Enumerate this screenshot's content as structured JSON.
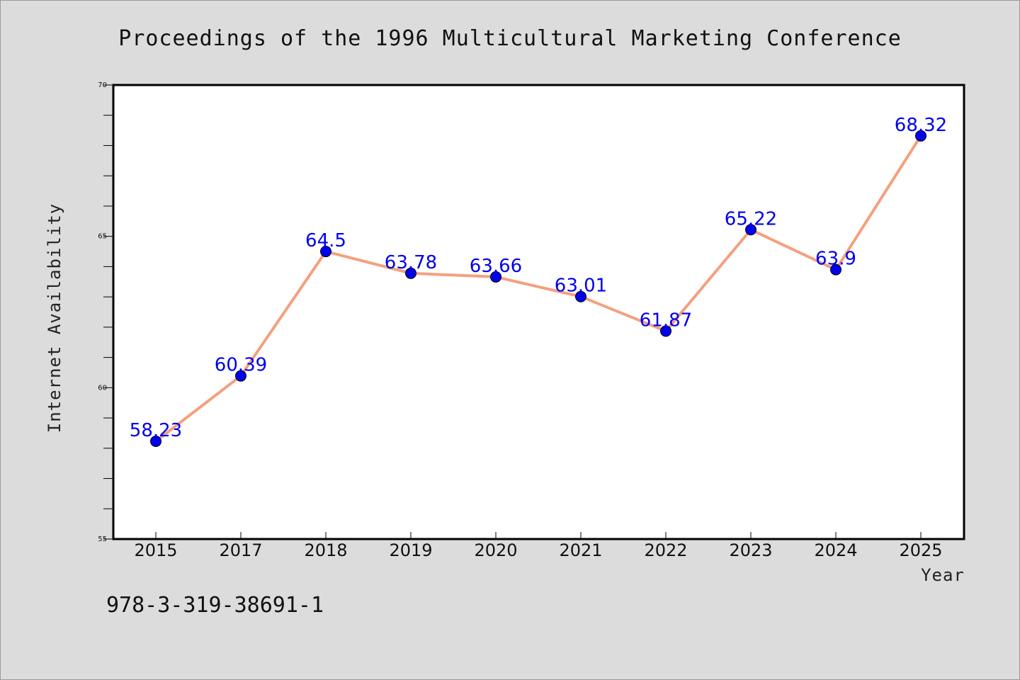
{
  "chart_data": {
    "type": "line",
    "title": "Proceedings of the 1996 Multicultural Marketing Conference",
    "xlabel": "Year",
    "ylabel": "Internet Availability",
    "categories": [
      "2015",
      "2017",
      "2018",
      "2019",
      "2020",
      "2021",
      "2022",
      "2023",
      "2024",
      "2025"
    ],
    "values": [
      58.23,
      60.39,
      64.5,
      63.78,
      63.66,
      63.01,
      61.87,
      65.22,
      63.9,
      68.32
    ],
    "data_labels": [
      "58.23",
      "60.39",
      "64.5",
      "63.78",
      "63.66",
      "63.01",
      "61.87",
      "65.22",
      "63.9",
      "68.32"
    ],
    "ylim": [
      55,
      70
    ],
    "yticks": [
      "55",
      "60",
      "65",
      "70"
    ],
    "y_minor_step": 1,
    "grid": false,
    "line_color": "#f4a080",
    "marker_color": "#0000ee",
    "label_color": "#0000ee"
  },
  "footer": {
    "isbn": "978-3-319-38691-1"
  },
  "colors": {
    "background": "#dcdcdc",
    "plot_background": "#ffffff"
  }
}
